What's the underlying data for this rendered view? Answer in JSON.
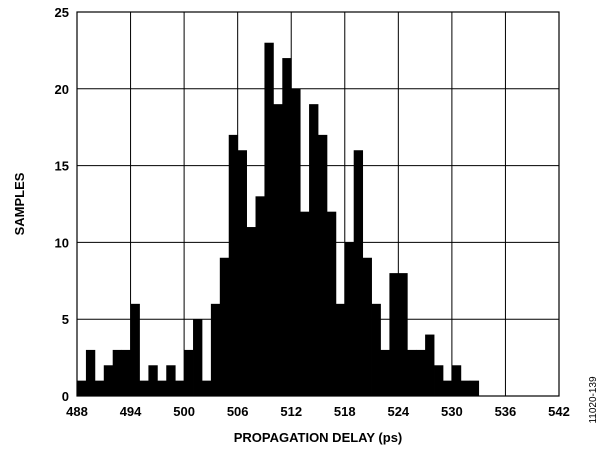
{
  "chart_data": {
    "type": "bar",
    "title": "",
    "xlabel": "PROPAGATION DELAY (ps)",
    "ylabel": "SAMPLES",
    "bin_width": 1,
    "x_start": 488,
    "xlim": [
      488,
      542
    ],
    "ylim": [
      0,
      25
    ],
    "x_ticks": [
      488,
      494,
      500,
      506,
      512,
      518,
      524,
      530,
      536,
      542
    ],
    "y_ticks": [
      0,
      5,
      10,
      15,
      20,
      25
    ],
    "grid": true,
    "legend": "none",
    "bar_color": "#000000",
    "values": [
      1,
      3,
      1,
      2,
      3,
      3,
      6,
      1,
      2,
      1,
      2,
      1,
      3,
      5,
      1,
      6,
      9,
      17,
      16,
      11,
      13,
      23,
      19,
      22,
      20,
      12,
      19,
      17,
      12,
      6,
      10,
      16,
      9,
      6,
      3,
      8,
      8,
      3,
      3,
      4,
      2,
      1,
      2,
      1,
      1
    ]
  },
  "figure_id": "11020-139"
}
